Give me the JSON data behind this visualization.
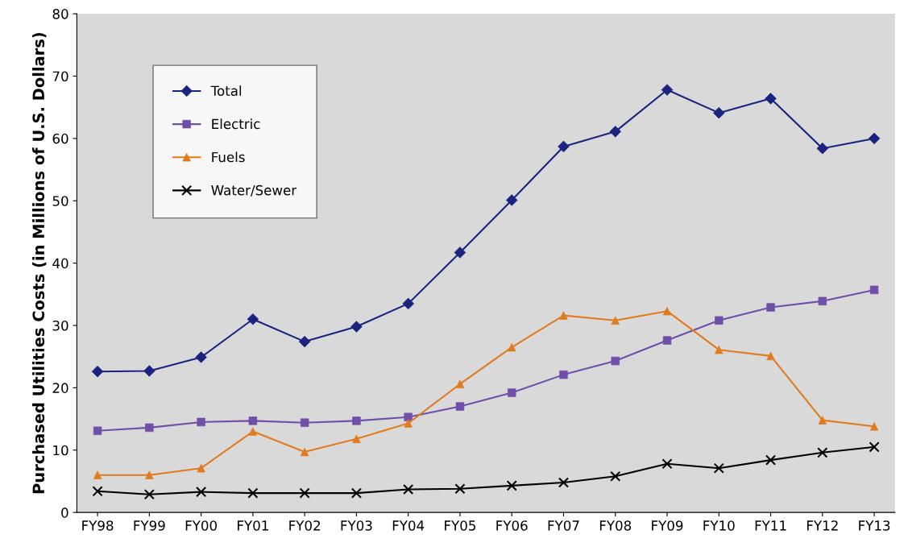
{
  "chart_data": {
    "type": "line",
    "ylabel": "Purchased Utilities Costs (in Millions of U.S. Dollars)",
    "categories": [
      "FY98",
      "FY99",
      "FY00",
      "FY01",
      "FY02",
      "FY03",
      "FY04",
      "FY05",
      "FY06",
      "FY07",
      "FY08",
      "FY09",
      "FY10",
      "FY11",
      "FY12",
      "FY13"
    ],
    "series": [
      {
        "name": "Total",
        "color": "#1a237e",
        "marker": "diamond",
        "values": [
          22.6,
          22.7,
          24.9,
          31.0,
          27.4,
          29.8,
          33.5,
          41.7,
          50.1,
          58.7,
          61.1,
          67.8,
          64.1,
          66.4,
          58.4,
          60.0
        ]
      },
      {
        "name": "Electric",
        "color": "#6f4fa8",
        "marker": "square",
        "values": [
          13.1,
          13.6,
          14.5,
          14.7,
          14.4,
          14.7,
          15.3,
          17.0,
          19.2,
          22.1,
          24.3,
          27.6,
          30.8,
          32.9,
          33.9,
          35.7
        ]
      },
      {
        "name": "Fuels",
        "color": "#e07b20",
        "marker": "triangle",
        "values": [
          6.0,
          6.0,
          7.1,
          13.0,
          9.7,
          11.8,
          14.3,
          20.6,
          26.5,
          31.6,
          30.8,
          32.3,
          26.1,
          25.1,
          14.8,
          13.8
        ]
      },
      {
        "name": "Water/Sewer",
        "color": "#000000",
        "marker": "cross",
        "values": [
          3.4,
          2.9,
          3.3,
          3.1,
          3.1,
          3.1,
          3.7,
          3.8,
          4.3,
          4.8,
          5.8,
          7.8,
          7.1,
          8.4,
          9.6,
          10.5
        ]
      }
    ],
    "ylim": [
      0,
      80
    ],
    "yticks": [
      0,
      10,
      20,
      30,
      40,
      50,
      60,
      70,
      80
    ],
    "grid": false,
    "legend": "top left"
  }
}
